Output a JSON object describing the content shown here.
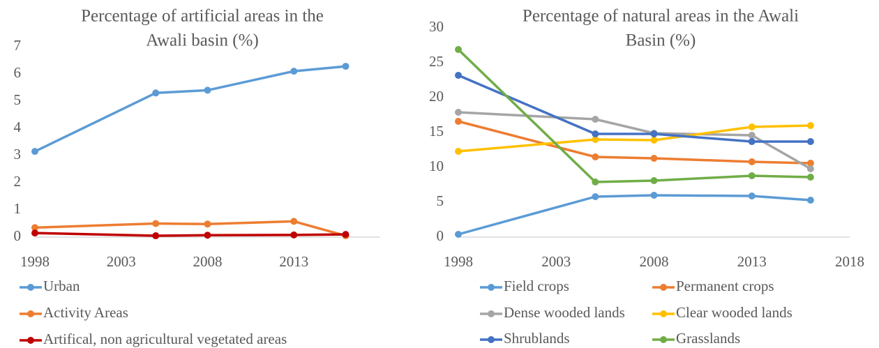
{
  "chart_data": [
    {
      "type": "line",
      "title": [
        "Percentage of artificial areas in the",
        "Awali basin (%)"
      ],
      "x": [
        1998,
        2005,
        2008,
        2013,
        2016
      ],
      "xlim": [
        1998,
        2018
      ],
      "xticks": [
        1998,
        2003,
        2008,
        2013
      ],
      "ylim": [
        0,
        7
      ],
      "yticks": [
        0,
        1,
        2,
        3,
        4,
        5,
        6,
        7
      ],
      "series": [
        {
          "name": "Urban",
          "color": "#5b9bd5",
          "values": [
            3.15,
            5.3,
            5.4,
            6.1,
            6.28
          ]
        },
        {
          "name": "Activity Areas",
          "color": "#ed7d31",
          "values": [
            0.35,
            0.5,
            0.48,
            0.58,
            0.05
          ]
        },
        {
          "name": "Artifical, non agricultural vegetated areas",
          "color": "#c00000",
          "values": [
            0.15,
            0.05,
            0.07,
            0.08,
            0.1
          ]
        }
      ]
    },
    {
      "type": "line",
      "title": [
        "Percentage of natural areas in the Awali",
        "Basin (%)"
      ],
      "x": [
        1998,
        2005,
        2008,
        2013,
        2016
      ],
      "xlim": [
        1998,
        2018
      ],
      "xticks": [
        1998,
        2003,
        2008,
        2013,
        2018
      ],
      "ylim": [
        0,
        30
      ],
      "yticks": [
        0,
        5,
        10,
        15,
        20,
        25,
        30
      ],
      "series": [
        {
          "name": "Field crops",
          "color": "#5b9bd5",
          "values": [
            0.4,
            5.8,
            6.0,
            5.9,
            5.3
          ]
        },
        {
          "name": "Permanent crops",
          "color": "#ed7d31",
          "values": [
            16.6,
            11.5,
            11.3,
            10.8,
            10.6
          ]
        },
        {
          "name": "Dense wooded lands",
          "color": "#a5a5a5",
          "values": [
            17.9,
            16.9,
            14.9,
            14.6,
            9.8
          ]
        },
        {
          "name": "Clear wooded lands",
          "color": "#ffc000",
          "values": [
            12.3,
            14.0,
            13.9,
            15.8,
            16.0
          ]
        },
        {
          "name": "Shrublands",
          "color": "#4472c4",
          "values": [
            23.2,
            14.8,
            14.8,
            13.7,
            13.7
          ]
        },
        {
          "name": "Grasslands",
          "color": "#70ad47",
          "values": [
            26.9,
            7.9,
            8.1,
            8.8,
            8.6
          ]
        }
      ]
    }
  ]
}
